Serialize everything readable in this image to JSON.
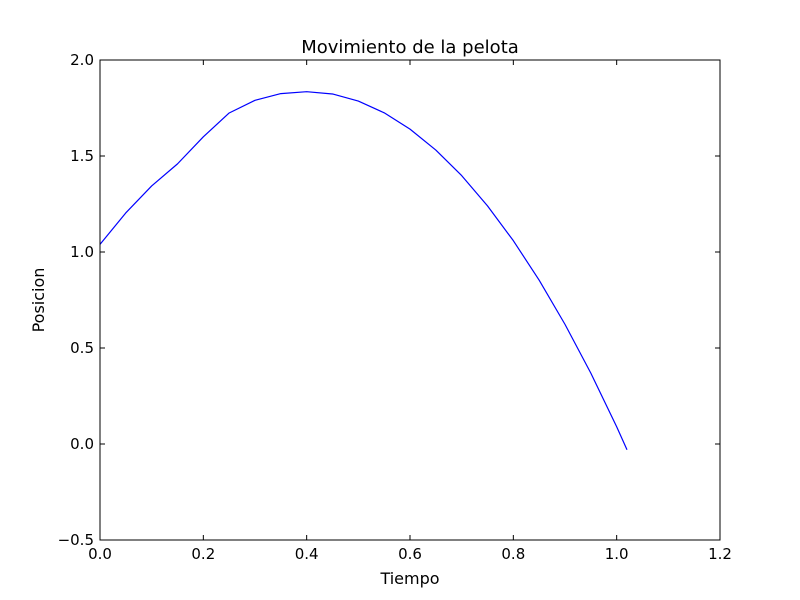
{
  "chart_data": {
    "type": "line",
    "title": "Movimiento de la pelota",
    "xlabel": "Tiempo",
    "ylabel": "Posicion",
    "xlim": [
      0.0,
      1.2
    ],
    "ylim": [
      -0.5,
      2.0
    ],
    "xticks": [
      0.0,
      0.2,
      0.4,
      0.6,
      0.8,
      1.0,
      1.2
    ],
    "xtick_labels": [
      "0.0",
      "0.2",
      "0.4",
      "0.6",
      "0.8",
      "1.0",
      "1.2"
    ],
    "yticks": [
      -0.5,
      0.0,
      0.5,
      1.0,
      1.5,
      2.0
    ],
    "ytick_labels": [
      "−0.5",
      "0.0",
      "0.5",
      "1.0",
      "1.5",
      "2.0"
    ],
    "grid": false,
    "series": [
      {
        "color": "#0000ff",
        "x": [
          0.0,
          0.05,
          0.1,
          0.15,
          0.2,
          0.25,
          0.3,
          0.35,
          0.4,
          0.45,
          0.5,
          0.55,
          0.6,
          0.65,
          0.7,
          0.75,
          0.8,
          0.85,
          0.9,
          0.95,
          1.0,
          1.02
        ],
        "y": [
          1.04,
          1.204,
          1.344,
          1.459,
          1.6,
          1.724,
          1.79,
          1.825,
          1.835,
          1.823,
          1.786,
          1.725,
          1.64,
          1.531,
          1.398,
          1.24,
          1.059,
          0.853,
          0.623,
          0.369,
          0.09,
          -0.03
        ]
      }
    ]
  }
}
